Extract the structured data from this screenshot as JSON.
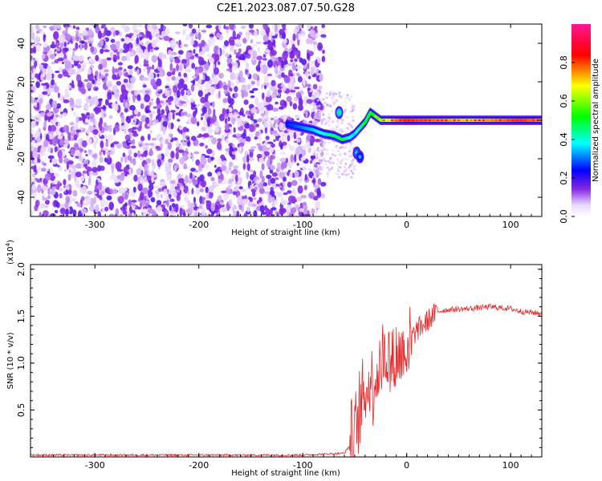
{
  "figure_title": "C2E1.2023.087.07.50.G28",
  "chart_data": [
    {
      "type": "heatmap",
      "xlabel": "Height of straight line (km)",
      "ylabel": "Frequency (Hz)",
      "xlim": [
        -362,
        130
      ],
      "ylim": [
        -50,
        50
      ],
      "xticks": [
        -300,
        -200,
        -100,
        0,
        100
      ],
      "yticks": [
        -40,
        -20,
        0,
        20,
        40
      ],
      "colorbar": {
        "label": "Normalized spectral amplitude",
        "range": [
          0.0,
          1.0
        ],
        "ticks": [
          0.0,
          0.2,
          0.4,
          0.6,
          0.8
        ],
        "colormap": [
          "#ffffff",
          "#8a2be2",
          "#0000ff",
          "#00ffff",
          "#00ff00",
          "#ffff00",
          "#ff0000",
          "#ff1493"
        ]
      },
      "noise_region_x": [
        -362,
        -80
      ],
      "signal_track": {
        "x": [
          -115,
          -90,
          -80,
          -70,
          -62,
          -55,
          -50,
          -45,
          -40,
          -35,
          -30,
          -25,
          -20,
          -10,
          0,
          30,
          60,
          90,
          110,
          130
        ],
        "frequency": [
          -2,
          -5,
          -7,
          -8,
          -10,
          -9,
          -7,
          -4,
          -1,
          4,
          2,
          0,
          0,
          0,
          0,
          0,
          0,
          0,
          0,
          0
        ],
        "amplitude": [
          0.35,
          0.45,
          0.5,
          0.55,
          0.6,
          0.5,
          0.45,
          0.55,
          0.6,
          0.6,
          0.65,
          0.7,
          0.75,
          0.85,
          0.9,
          0.85,
          0.8,
          0.85,
          0.9,
          0.85
        ]
      },
      "secondary_blobs": [
        {
          "x": -65,
          "frequency": 4,
          "amplitude": 0.45
        },
        {
          "x": -48,
          "frequency": -17,
          "amplitude": 0.4
        },
        {
          "x": -45,
          "frequency": -19,
          "amplitude": 0.35
        }
      ]
    },
    {
      "type": "line",
      "xlabel": "Height of straight line (km)",
      "ylabel": "SNR (10 * v/v)",
      "y_multiplier_label": "(x10",
      "y_multiplier_exp": "4",
      "xlim": [
        -362,
        130
      ],
      "ylim": [
        0,
        2.05
      ],
      "xticks": [
        -300,
        -200,
        -100,
        0,
        100
      ],
      "yticks": [
        0.5,
        1.0,
        1.5,
        2.0
      ],
      "color": "#e8292b",
      "series": [
        {
          "x": [
            -362,
            -300,
            -200,
            -100,
            -60,
            -50,
            -45,
            -40,
            -35,
            -30,
            -25,
            -20,
            -15,
            -10,
            -5,
            0,
            10,
            20,
            30,
            40,
            60,
            80,
            100,
            110,
            130
          ],
          "values": [
            0.02,
            0.02,
            0.02,
            0.02,
            0.04,
            0.2,
            0.5,
            0.7,
            0.8,
            0.85,
            1.0,
            1.1,
            1.0,
            1.05,
            1.1,
            1.2,
            1.35,
            1.45,
            1.55,
            1.57,
            1.58,
            1.6,
            1.58,
            1.55,
            1.53
          ]
        }
      ]
    }
  ]
}
